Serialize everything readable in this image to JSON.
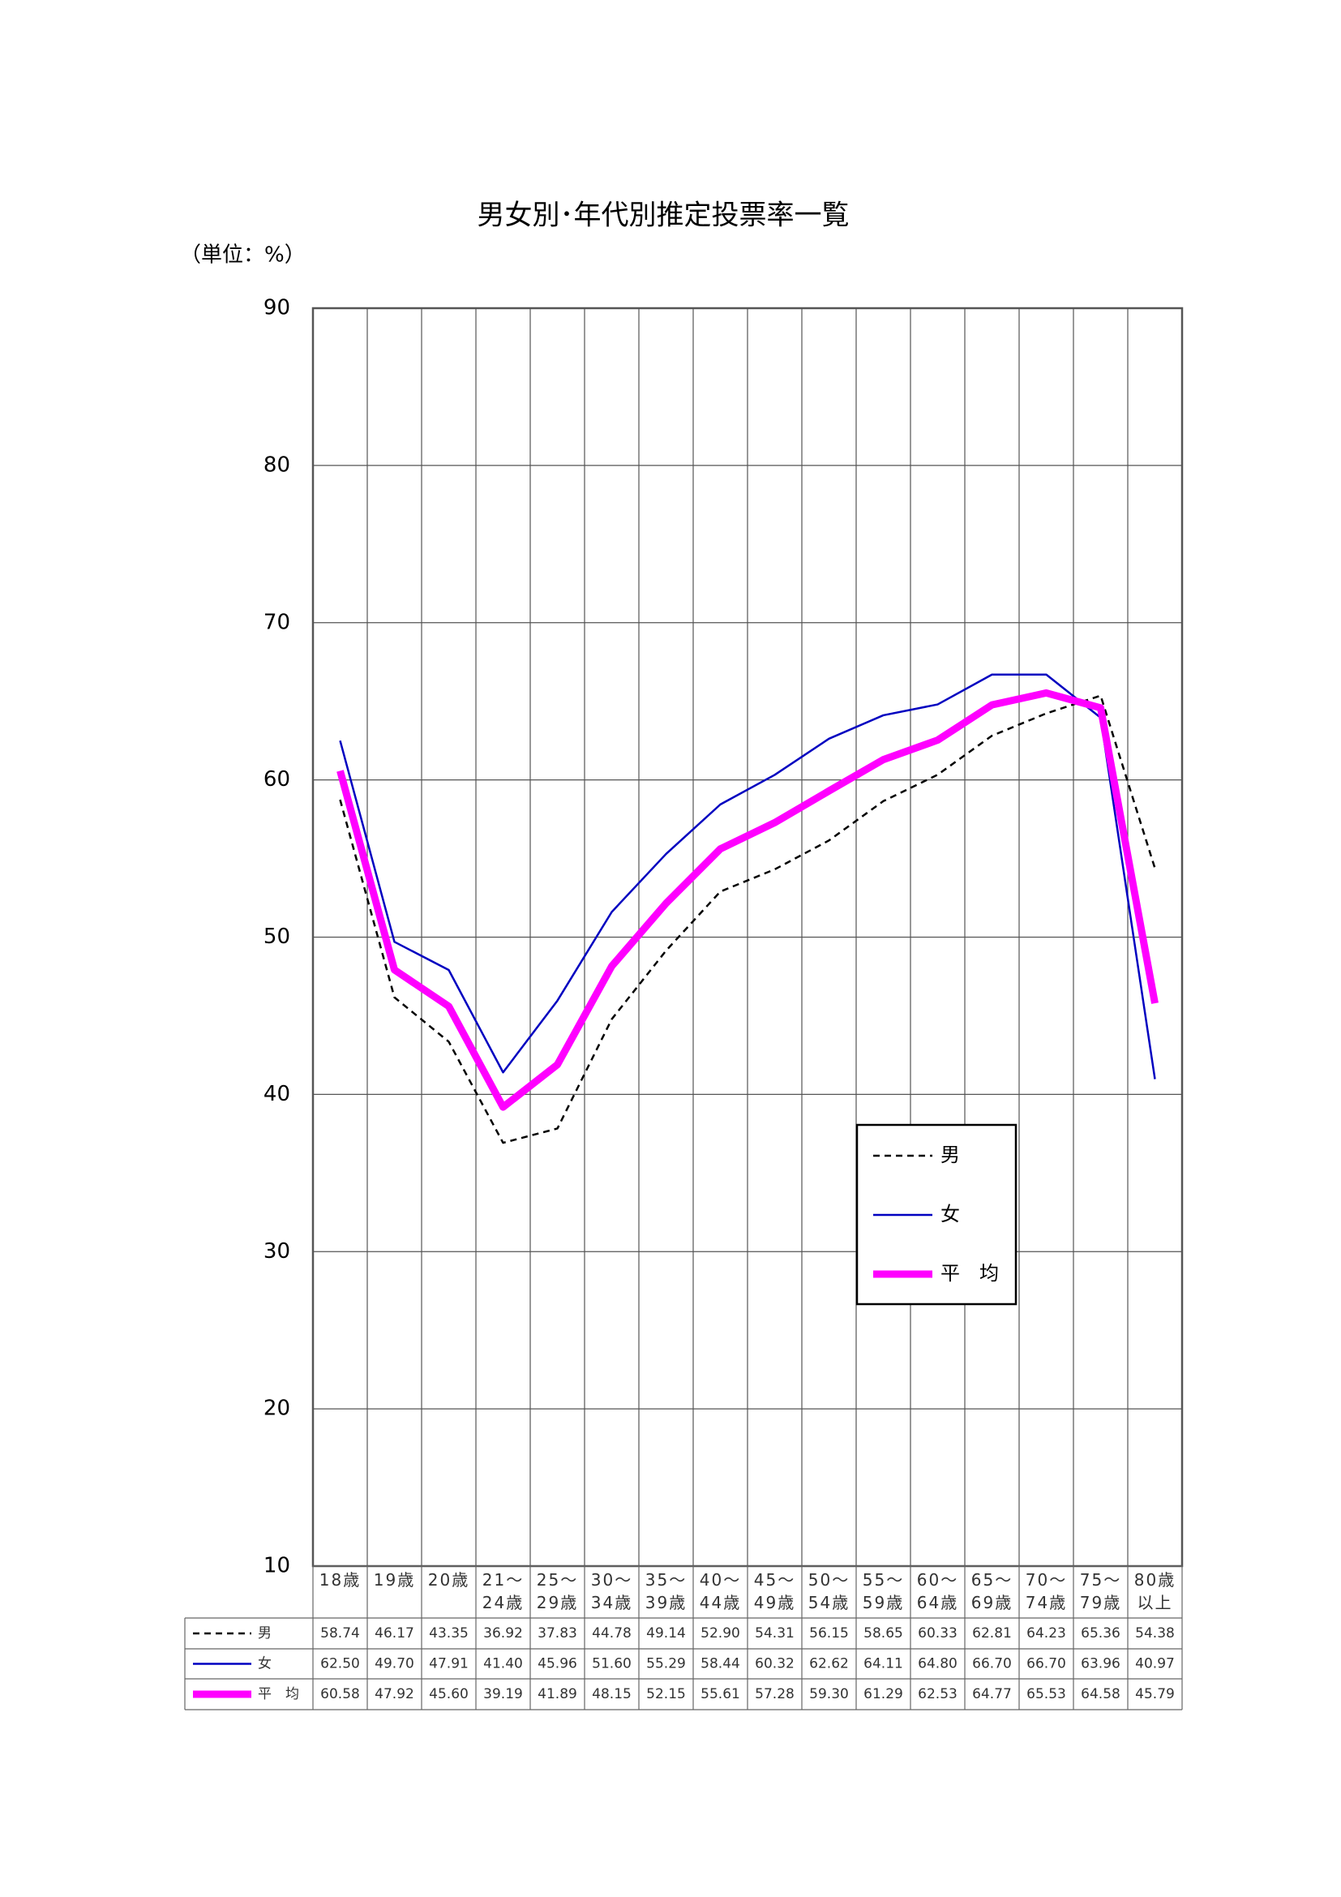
{
  "chart_data": {
    "type": "line",
    "title": "男女別･年代別推定投票率一覧",
    "unit_label": "（単位：%）",
    "categories": [
      "18歳",
      "19歳",
      "20歳",
      "21～\n24歳",
      "25～\n29歳",
      "30～\n34歳",
      "35～\n39歳",
      "40～\n44歳",
      "45～\n49歳",
      "50～\n54歳",
      "55～\n59歳",
      "60～\n64歳",
      "65～\n69歳",
      "70～\n74歳",
      "75～\n79歳",
      "80歳\n以上"
    ],
    "series": [
      {
        "name": "男",
        "color": "#000000",
        "values": [
          58.74,
          46.17,
          43.35,
          36.92,
          37.83,
          44.78,
          49.14,
          52.9,
          54.31,
          56.15,
          58.65,
          60.33,
          62.81,
          64.23,
          65.36,
          54.38
        ],
        "value_labels": [
          "58.74",
          "46.17",
          "43.35",
          "36.92",
          "37.83",
          "44.78",
          "49.14",
          "52.90",
          "54.31",
          "56.15",
          "58.65",
          "60.33",
          "62.81",
          "64.23",
          "65.36",
          "54.38"
        ]
      },
      {
        "name": "女",
        "color": "#0000c0",
        "values": [
          62.5,
          49.7,
          47.91,
          41.4,
          45.96,
          51.6,
          55.29,
          58.44,
          60.32,
          62.62,
          64.11,
          64.8,
          66.7,
          66.7,
          63.96,
          40.97
        ],
        "value_labels": [
          "62.50",
          "49.70",
          "47.91",
          "41.40",
          "45.96",
          "51.60",
          "55.29",
          "58.44",
          "60.32",
          "62.62",
          "64.11",
          "64.80",
          "66.70",
          "66.70",
          "63.96",
          "40.97"
        ]
      },
      {
        "name": "平　均",
        "color": "#ff00ff",
        "values": [
          60.58,
          47.92,
          45.6,
          39.19,
          41.89,
          48.15,
          52.15,
          55.61,
          57.28,
          59.3,
          61.29,
          62.53,
          64.77,
          65.53,
          64.58,
          45.79
        ],
        "value_labels": [
          "60.58",
          "47.92",
          "45.60",
          "39.19",
          "41.89",
          "48.15",
          "52.15",
          "55.61",
          "57.28",
          "59.30",
          "61.29",
          "62.53",
          "64.77",
          "65.53",
          "64.58",
          "45.79"
        ]
      }
    ],
    "ylim": [
      10,
      90
    ],
    "yticks": [
      10,
      20,
      30,
      40,
      50,
      60,
      70,
      80,
      90
    ],
    "grid": true
  }
}
